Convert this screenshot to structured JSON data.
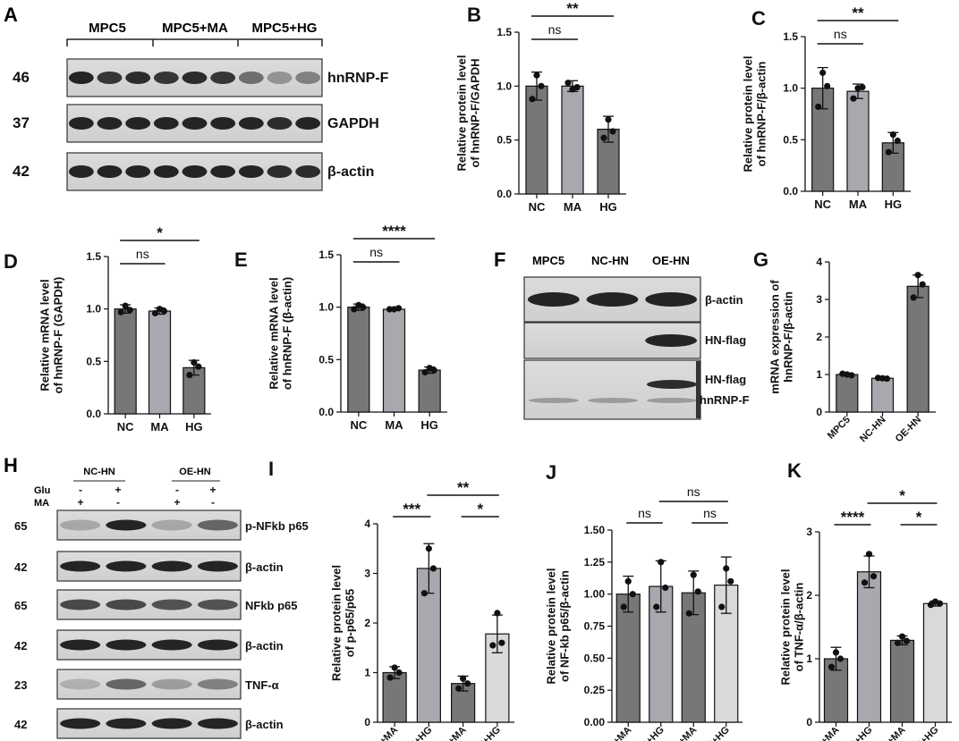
{
  "panels": {
    "A": {
      "letter": "A",
      "groups": [
        "MPC5",
        "MPC5+MA",
        "MPC5+HG"
      ],
      "rows": [
        {
          "mw": "46",
          "label": "hnRNP-F"
        },
        {
          "mw": "37",
          "label": "GAPDH"
        },
        {
          "mw": "42",
          "label": "β-actin"
        }
      ]
    },
    "F": {
      "letter": "F",
      "lanes": [
        "MPC5",
        "NC-HN",
        "OE-HN"
      ],
      "labels": [
        "β-actin",
        "HN-flag",
        "HN-flag",
        "hnRNP-F"
      ]
    },
    "H": {
      "letter": "H",
      "groups": [
        "NC-HN",
        "OE-HN"
      ],
      "glu_label": "Glu",
      "ma_label": "MA",
      "glu_signs": [
        "-",
        "+",
        "-",
        "+"
      ],
      "ma_signs": [
        "+",
        "-",
        "+",
        "-"
      ],
      "rows": [
        {
          "mw": "65",
          "label": "p-NFkb p65"
        },
        {
          "mw": "42",
          "label": "β-actin"
        },
        {
          "mw": "65",
          "label": "NFkb p65"
        },
        {
          "mw": "42",
          "label": "β-actin"
        },
        {
          "mw": "23",
          "label": "TNF-α"
        },
        {
          "mw": "42",
          "label": "β-actin"
        }
      ]
    }
  },
  "chart_data": [
    {
      "panel": "B",
      "type": "bar",
      "categories": [
        "NC",
        "MA",
        "HG"
      ],
      "values": [
        1.0,
        1.0,
        0.6
      ],
      "errors": [
        0.13,
        0.05,
        0.12
      ],
      "points": [
        [
          1.1,
          0.88,
          1.0
        ],
        [
          0.97,
          1.03,
          0.99
        ],
        [
          0.69,
          0.52,
          0.58
        ]
      ],
      "ylabel": "Relative protein level\nof hnRNP-F/GAPDH",
      "ylim": [
        0,
        1.5
      ],
      "yticks": [
        "0.0",
        "0.5",
        "1.0",
        "1.5"
      ],
      "colors": [
        "#777777",
        "#a8a8ae",
        "#777777"
      ],
      "sig": [
        {
          "from": 0,
          "to": 2,
          "text": "**"
        },
        {
          "from": 0,
          "to": 1,
          "text": "ns"
        }
      ]
    },
    {
      "panel": "C",
      "type": "bar",
      "categories": [
        "NC",
        "MA",
        "HG"
      ],
      "values": [
        1.0,
        0.97,
        0.47
      ],
      "errors": [
        0.2,
        0.07,
        0.1
      ],
      "points": [
        [
          1.15,
          0.82,
          1.02
        ],
        [
          1.0,
          0.9,
          1.01
        ],
        [
          0.55,
          0.38,
          0.49
        ]
      ],
      "ylabel": "Relative protein level\nof hnRNP-F/β-actin",
      "ylim": [
        0,
        1.5
      ],
      "yticks": [
        "0.0",
        "0.5",
        "1.0",
        "1.5"
      ],
      "colors": [
        "#777777",
        "#a8a8ae",
        "#777777"
      ],
      "sig": [
        {
          "from": 0,
          "to": 2,
          "text": "**"
        },
        {
          "from": 0,
          "to": 1,
          "text": "ns"
        }
      ]
    },
    {
      "panel": "D",
      "type": "bar",
      "categories": [
        "NC",
        "MA",
        "HG"
      ],
      "values": [
        1.0,
        0.98,
        0.44
      ],
      "errors": [
        0.04,
        0.03,
        0.07
      ],
      "points": [
        [
          1.03,
          0.97,
          0.99
        ],
        [
          1.0,
          0.96,
          0.98
        ],
        [
          0.49,
          0.37,
          0.45
        ]
      ],
      "ylabel": "Relative mRNA level\nof hnRNP-F (GAPDH)",
      "ylim": [
        0,
        1.5
      ],
      "yticks": [
        "0.0",
        "0.5",
        "1.0",
        "1.5"
      ],
      "colors": [
        "#777777",
        "#a8a8ae",
        "#777777"
      ],
      "sig": [
        {
          "from": 0,
          "to": 2,
          "text": "*"
        },
        {
          "from": 0,
          "to": 1,
          "text": "ns"
        }
      ]
    },
    {
      "panel": "E",
      "type": "bar",
      "categories": [
        "NC",
        "MA",
        "HG"
      ],
      "values": [
        1.0,
        0.98,
        0.4
      ],
      "errors": [
        0.03,
        0.01,
        0.03
      ],
      "points": [
        [
          1.02,
          0.98,
          1.0
        ],
        [
          0.98,
          0.98,
          0.99
        ],
        [
          0.42,
          0.38,
          0.4
        ]
      ],
      "ylabel": "Relative mRNA level\nof hnRNP-F (β-actin)",
      "ylim": [
        0,
        1.5
      ],
      "yticks": [
        "0.0",
        "0.5",
        "1.0",
        "1.5"
      ],
      "colors": [
        "#777777",
        "#a8a8ae",
        "#777777"
      ],
      "sig": [
        {
          "from": 0,
          "to": 2,
          "text": "****"
        },
        {
          "from": 0,
          "to": 1,
          "text": "ns"
        }
      ]
    },
    {
      "panel": "G",
      "type": "bar",
      "categories": [
        "MPC5",
        "NC-HN",
        "OE-HN"
      ],
      "values": [
        1.0,
        0.9,
        3.35
      ],
      "errors": [
        0.03,
        0.02,
        0.3
      ],
      "points": [
        [
          1.0,
          1.02,
          0.98
        ],
        [
          0.9,
          0.91,
          0.89
        ],
        [
          3.65,
          3.05,
          3.4
        ]
      ],
      "ylabel": "mRNA expression of\nhnRNP-F/β-actin",
      "ylim": [
        0,
        4
      ],
      "yticks": [
        "0",
        "1",
        "2",
        "3",
        "4"
      ],
      "colors": [
        "#777777",
        "#a8a8ae",
        "#777777"
      ],
      "sig": []
    },
    {
      "panel": "I",
      "type": "bar",
      "categories": [
        "NC-HN+MA",
        "NC-HN+HG",
        "OE-HN+MA",
        "OE-HN+HG"
      ],
      "values": [
        1.0,
        3.1,
        0.78,
        1.78
      ],
      "errors": [
        0.12,
        0.5,
        0.15,
        0.38
      ],
      "points": [
        [
          1.1,
          0.9,
          1.0
        ],
        [
          3.5,
          2.6,
          3.1
        ],
        [
          0.88,
          0.68,
          0.78
        ],
        [
          2.2,
          1.55,
          1.6
        ]
      ],
      "ylabel": "Relative protein level\nof p-p65/p65",
      "ylim": [
        0,
        4
      ],
      "yticks": [
        "0",
        "1",
        "2",
        "3",
        "4"
      ],
      "colors": [
        "#777777",
        "#a8a8ae",
        "#777777",
        "#d9d9d9"
      ],
      "sig": [
        {
          "from": 0,
          "to": 1,
          "text": "***"
        },
        {
          "from": 2,
          "to": 3,
          "text": "*"
        },
        {
          "from": 1,
          "to": 3,
          "text": "**"
        }
      ]
    },
    {
      "panel": "J",
      "type": "bar",
      "categories": [
        "NC-HN+MA",
        "NC-HN+HG",
        "OE-HN+MA",
        "OE-HN+HG"
      ],
      "values": [
        1.0,
        1.06,
        1.01,
        1.07
      ],
      "errors": [
        0.14,
        0.2,
        0.17,
        0.22
      ],
      "points": [
        [
          1.1,
          0.9,
          1.0
        ],
        [
          1.25,
          0.9,
          1.05
        ],
        [
          1.15,
          0.85,
          1.02
        ],
        [
          1.2,
          0.9,
          1.1
        ]
      ],
      "ylabel": "Relative protein level\nof NF-kb p65/β-actin",
      "ylim": [
        0,
        1.5
      ],
      "yticks": [
        "0.00",
        "0.25",
        "0.50",
        "0.75",
        "1.00",
        "1.25",
        "1.50"
      ],
      "colors": [
        "#777777",
        "#a8a8ae",
        "#777777",
        "#d9d9d9"
      ],
      "sig": [
        {
          "from": 0,
          "to": 1,
          "text": "ns"
        },
        {
          "from": 2,
          "to": 3,
          "text": "ns"
        },
        {
          "from": 1,
          "to": 3,
          "text": "ns"
        }
      ]
    },
    {
      "panel": "K",
      "type": "bar",
      "categories": [
        "NC-HN+MA",
        "NC-HN+HG",
        "OE-HN+MA",
        "OE-HN+HG"
      ],
      "values": [
        1.0,
        2.37,
        1.29,
        1.87
      ],
      "errors": [
        0.18,
        0.25,
        0.07,
        0.04
      ],
      "points": [
        [
          1.1,
          0.87,
          1.0
        ],
        [
          2.65,
          2.2,
          2.3
        ],
        [
          1.35,
          1.25,
          1.28
        ],
        [
          1.9,
          1.85,
          1.87
        ]
      ],
      "ylabel": "Relative protein level\nof TNF-α/β-actin",
      "ylim": [
        0,
        3
      ],
      "yticks": [
        "0",
        "1",
        "2",
        "3"
      ],
      "colors": [
        "#777777",
        "#a8a8ae",
        "#777777",
        "#d9d9d9"
      ],
      "sig": [
        {
          "from": 0,
          "to": 1,
          "text": "****"
        },
        {
          "from": 2,
          "to": 3,
          "text": "*"
        },
        {
          "from": 1,
          "to": 3,
          "text": "*"
        }
      ]
    }
  ]
}
